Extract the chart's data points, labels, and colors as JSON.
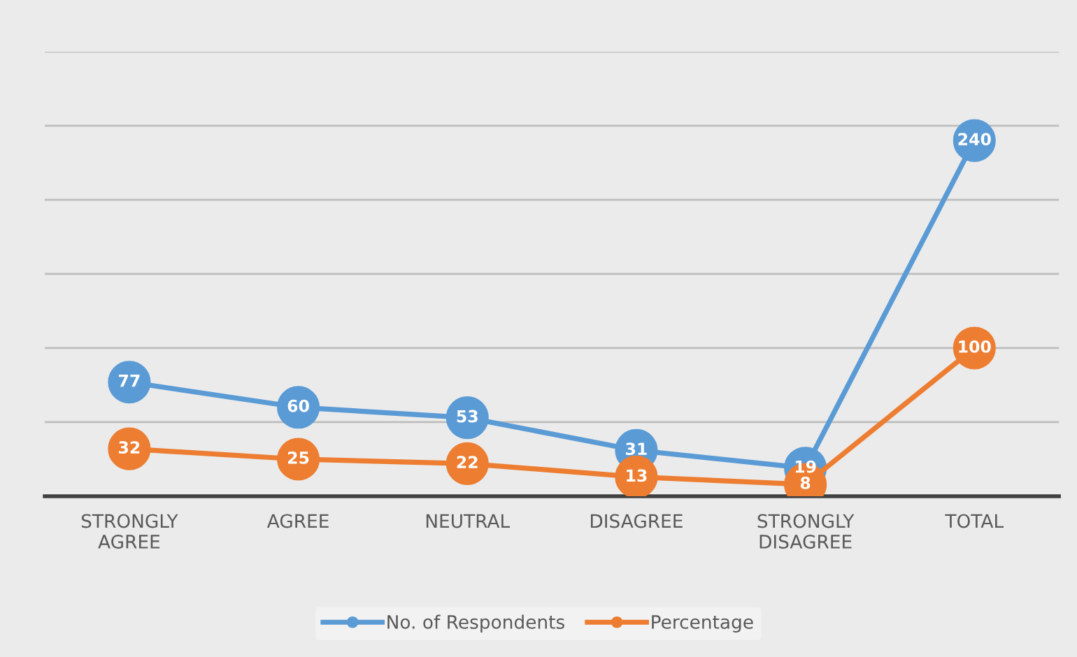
{
  "chart_data": {
    "type": "line",
    "categories": [
      "STRONGLY\nAGREE",
      "AGREE",
      "NEUTRAL",
      "DISAGREE",
      "STRONGLY\nDISAGREE",
      "TOTAL"
    ],
    "series": [
      {
        "name": "No. of Respondents",
        "color": "#5b9bd5",
        "values": [
          77,
          60,
          53,
          31,
          19,
          240
        ]
      },
      {
        "name": "Percentage",
        "color": "#ed7d31",
        "values": [
          32,
          25,
          22,
          13,
          8,
          100
        ]
      }
    ],
    "ylim": [
      0,
      300
    ],
    "yticks": [
      {
        "value": 0,
        "label": null
      },
      {
        "value": 50,
        "label": null
      },
      {
        "value": 100,
        "label": null
      },
      {
        "value": 150,
        "label": null
      },
      {
        "value": 200,
        "label": null
      },
      {
        "value": 250,
        "label": null
      },
      {
        "value": 300,
        "label": null
      }
    ],
    "tick_labels": "x",
    "grid": "y",
    "legend": "bottom",
    "marker": "circle",
    "line_style": "solid",
    "data_labels": true
  }
}
